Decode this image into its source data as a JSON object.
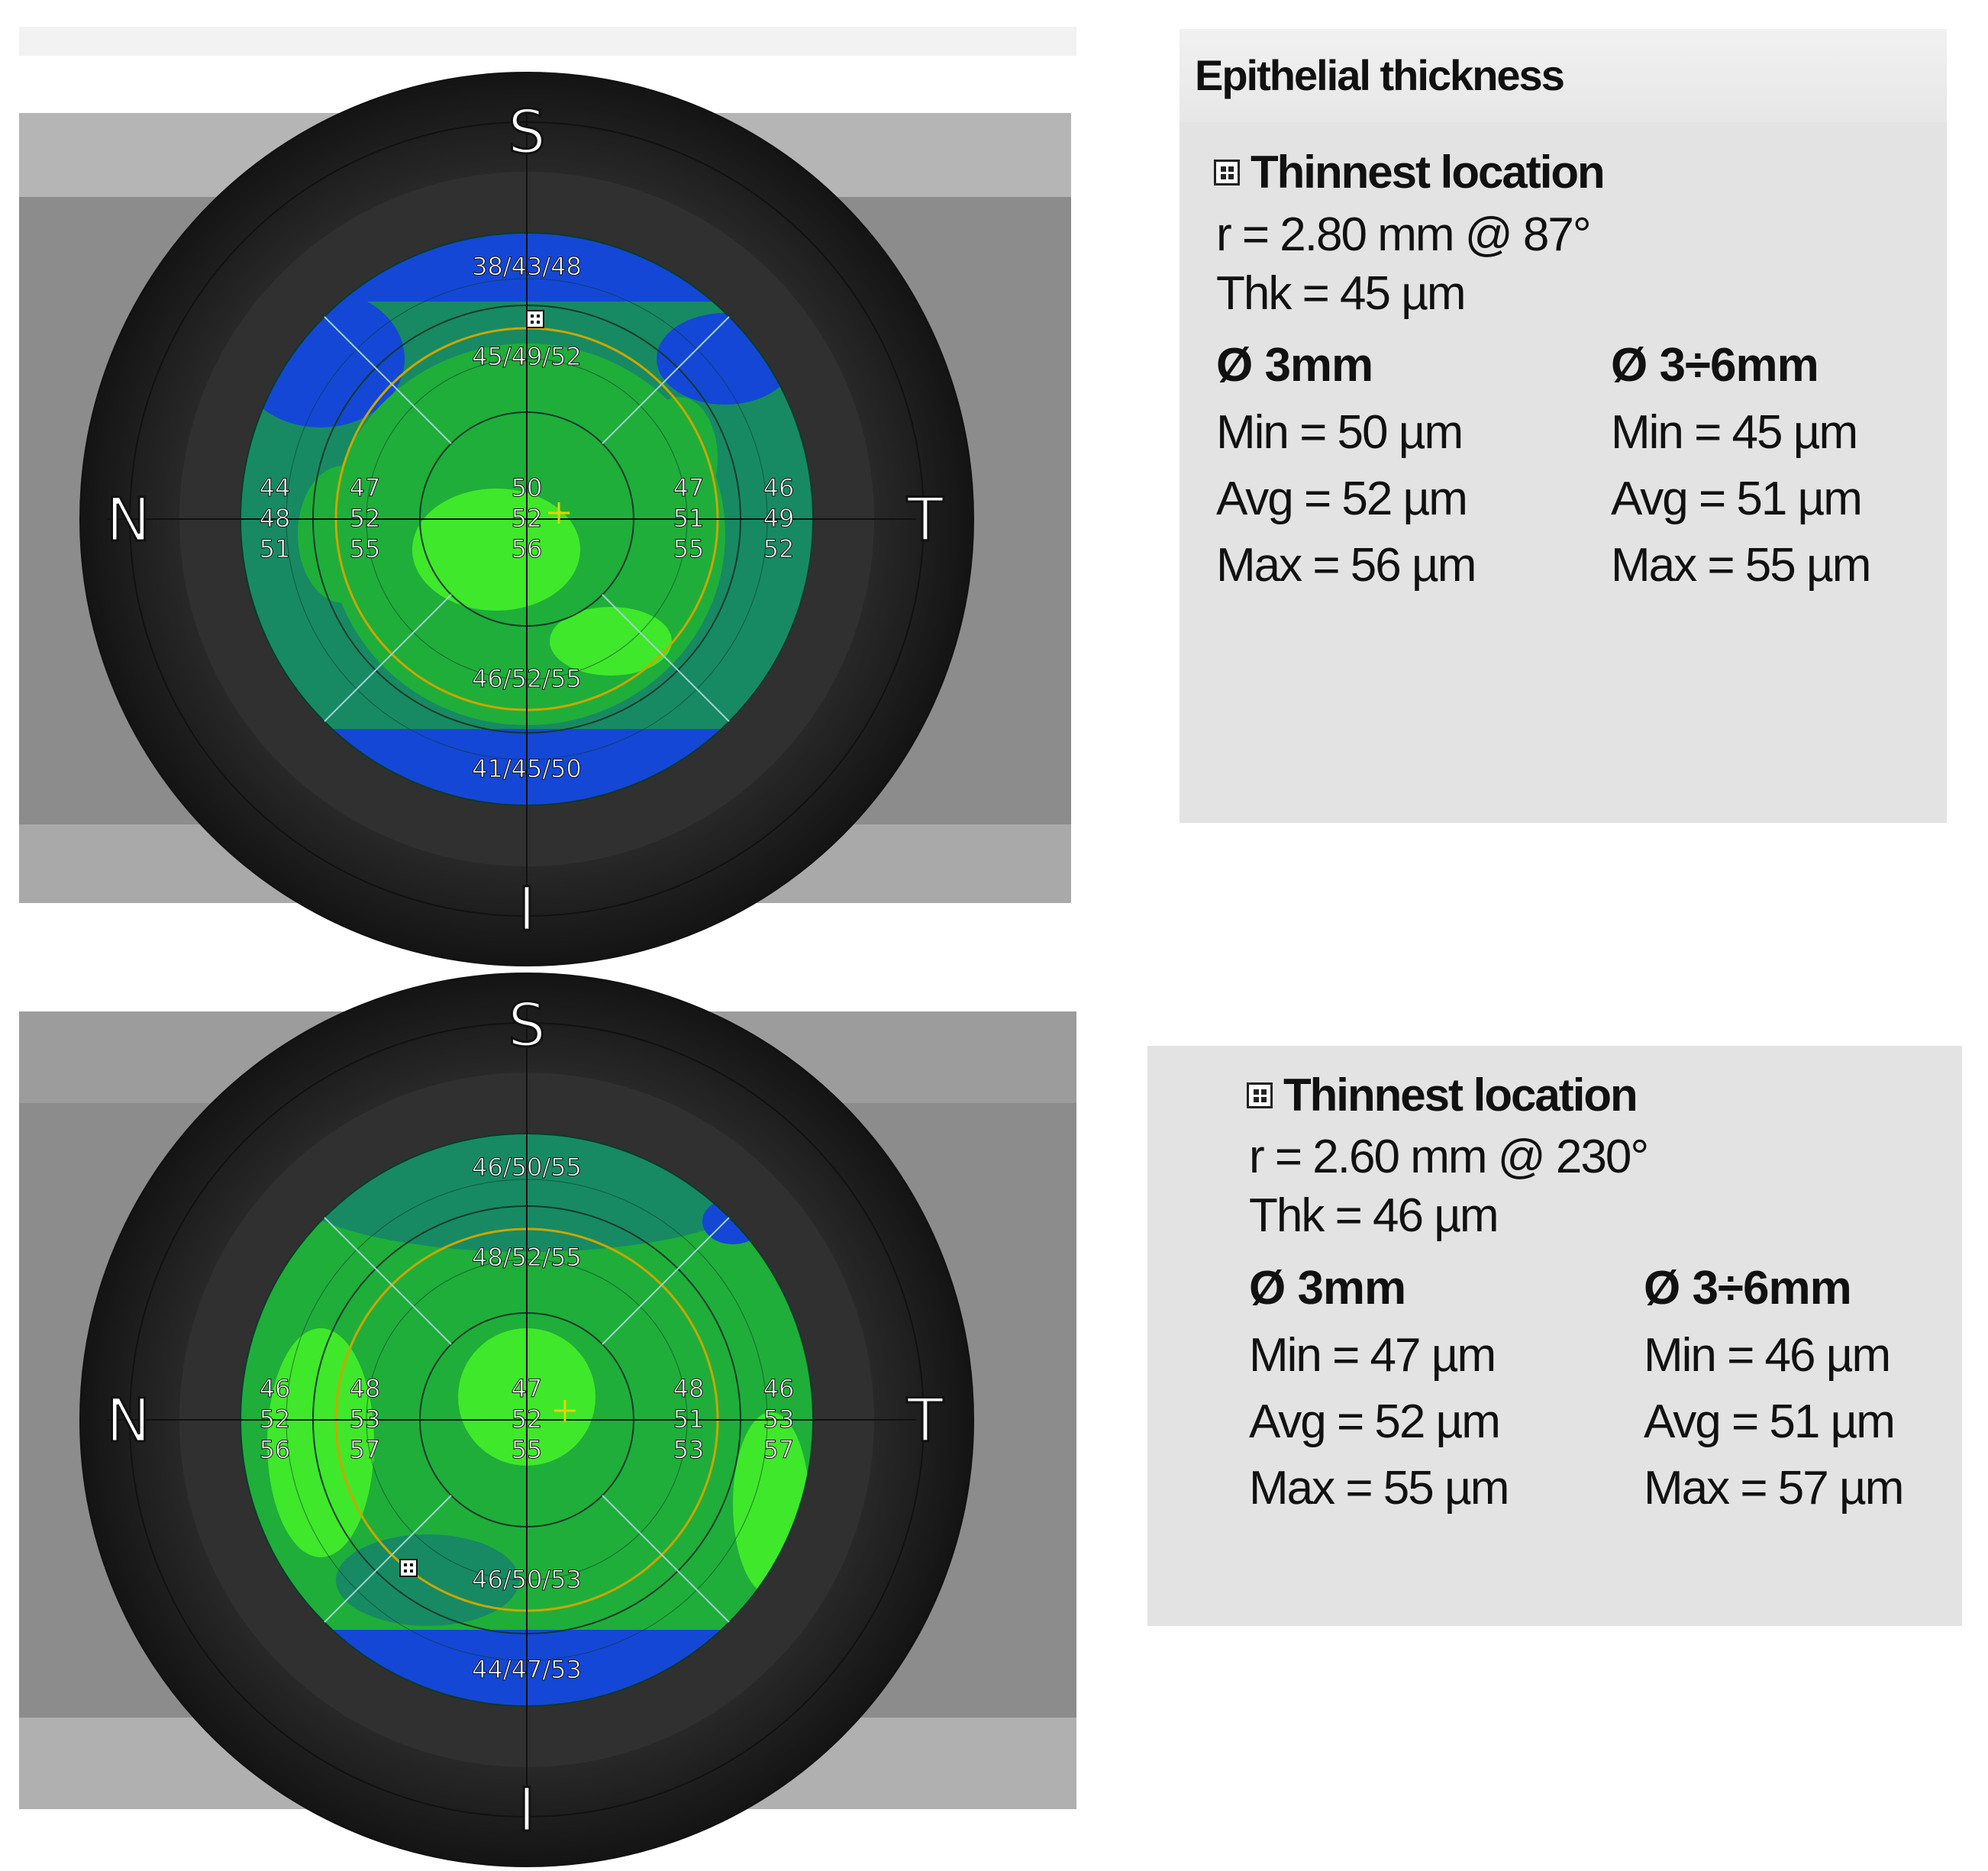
{
  "colors": {
    "map_blue": "#1447d6",
    "map_green": "#1fae3a",
    "map_teal": "#178a63",
    "map_lime": "#3fe82a",
    "ring_gold": "#c9a600",
    "panel_bg": "#e3e3e3"
  },
  "maps": [
    {
      "orientation": {
        "superior": "S",
        "nasal": "N",
        "temporal": "T",
        "inferior": "I"
      },
      "zone_values": {
        "superior_outer": "38/43/48",
        "superior_inner": "45/49/52",
        "inferior_inner": "46/52/55",
        "inferior_outer": "41/45/50",
        "nasal_outer": [
          "44",
          "48",
          "51"
        ],
        "nasal_inner": [
          "47",
          "52",
          "55"
        ],
        "center": [
          "50",
          "52",
          "56"
        ],
        "temporal_inner": [
          "47",
          "51",
          "55"
        ],
        "temporal_outer": [
          "46",
          "49",
          "52"
        ]
      },
      "thinnest_marker_icon": "thinnest-location-icon",
      "center_marker_icon": "crosshair-plus-icon"
    },
    {
      "orientation": {
        "superior": "S",
        "nasal": "N",
        "temporal": "T",
        "inferior": "I"
      },
      "zone_values": {
        "superior_outer": "46/50/55",
        "superior_inner": "48/52/55",
        "inferior_inner": "46/50/53",
        "inferior_outer": "44/47/53",
        "nasal_outer": [
          "46",
          "52",
          "56"
        ],
        "nasal_inner": [
          "48",
          "53",
          "57"
        ],
        "center": [
          "47",
          "52",
          "55"
        ],
        "temporal_inner": [
          "48",
          "51",
          "53"
        ],
        "temporal_outer": [
          "46",
          "53",
          "57"
        ]
      },
      "thinnest_marker_icon": "thinnest-location-icon",
      "center_marker_icon": "crosshair-plus-icon"
    }
  ],
  "panels": [
    {
      "title": "Epithelial thickness",
      "thinnest_label": "Thinnest location",
      "thinnest_icon": "thinnest-location-icon",
      "r_line": "r = 2.80 mm @ 87°",
      "thk_line": "Thk = 45 µm",
      "zone1": {
        "header": "Ø 3mm",
        "min": "Min = 50 µm",
        "avg": "Avg = 52 µm",
        "max": "Max = 56 µm"
      },
      "zone2": {
        "header": "Ø 3÷6mm",
        "min": "Min = 45 µm",
        "avg": "Avg = 51 µm",
        "max": "Max = 55 µm"
      }
    },
    {
      "thinnest_label": "Thinnest location",
      "thinnest_icon": "thinnest-location-icon",
      "r_line": "r = 2.60 mm @ 230°",
      "thk_line": "Thk = 46 µm",
      "zone1": {
        "header": "Ø 3mm",
        "min": "Min = 47 µm",
        "avg": "Avg = 52 µm",
        "max": "Max = 55 µm"
      },
      "zone2": {
        "header": "Ø 3÷6mm",
        "min": "Min = 46 µm",
        "avg": "Avg = 51 µm",
        "max": "Max = 57 µm"
      }
    }
  ]
}
